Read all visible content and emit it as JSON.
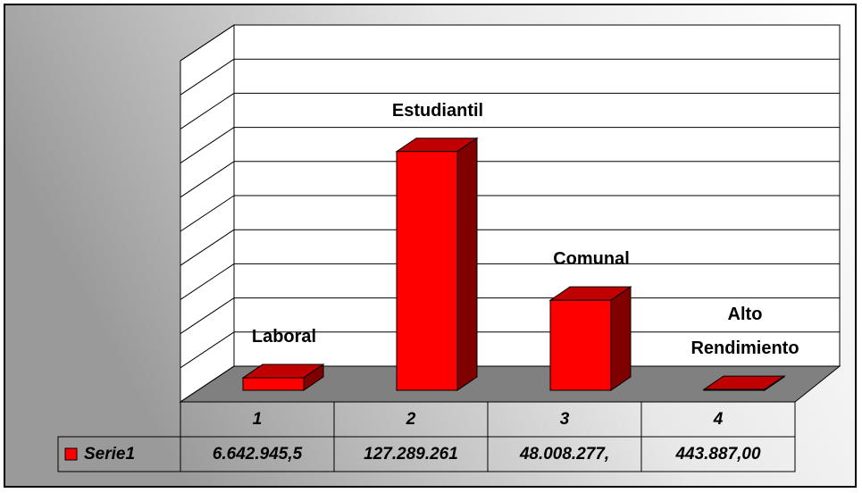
{
  "chart_data": {
    "type": "bar3d",
    "categories": [
      "1",
      "2",
      "3",
      "4"
    ],
    "data_labels": [
      "Laboral",
      "Estudiantil",
      "Comunal",
      "Alto Rendimiento"
    ],
    "series": [
      {
        "name": "Serie1",
        "color": "#ff0000",
        "values": [
          6642945.5,
          127289261,
          48008277,
          443887
        ],
        "value_labels": [
          "6.642.945,5",
          "127.289.261",
          "48.008.277,",
          "443.887,00"
        ]
      }
    ],
    "ylim": [
      0,
      200000000
    ],
    "yticks": [
      0,
      20000000,
      40000000,
      60000000,
      80000000,
      100000000,
      120000000,
      140000000,
      160000000,
      180000000,
      200000000
    ],
    "grid": true
  }
}
